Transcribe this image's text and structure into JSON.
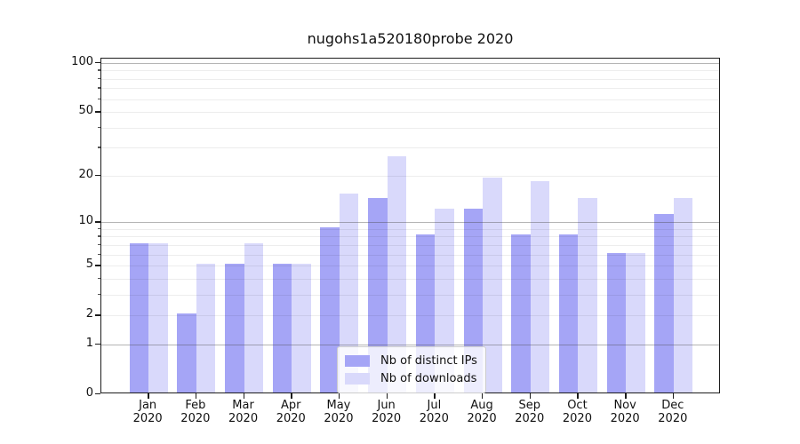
{
  "title": "nugohs1a520180probe 2020",
  "chart_data": {
    "type": "bar",
    "title": "nugohs1a520180probe 2020",
    "categories": [
      "Jan 2020",
      "Feb 2020",
      "Mar 2020",
      "Apr 2020",
      "May 2020",
      "Jun 2020",
      "Jul 2020",
      "Aug 2020",
      "Sep 2020",
      "Oct 2020",
      "Nov 2020",
      "Dec 2020"
    ],
    "series": [
      {
        "name": "Nb of distinct IPs",
        "color": "#a5a5f6",
        "values": [
          7,
          2,
          5,
          5,
          9,
          14,
          8,
          12,
          8,
          8,
          6,
          11
        ]
      },
      {
        "name": "Nb of downloads",
        "color": "#d9d9fb",
        "values": [
          7,
          5,
          7,
          5,
          15,
          26,
          12,
          19,
          18,
          14,
          6,
          14
        ]
      }
    ],
    "xlabel": "",
    "ylabel": "",
    "yscale": "log1p",
    "ylim": [
      0,
      106
    ],
    "ytick_values": [
      0,
      1,
      2,
      5,
      10,
      20,
      50,
      100
    ],
    "ytick_labels": [
      "0",
      "1",
      "2",
      "5",
      "10",
      "20",
      "50",
      "100"
    ],
    "minor_grid_values": [
      2,
      3,
      4,
      5,
      6,
      7,
      8,
      9,
      20,
      30,
      40,
      50,
      60,
      70,
      80,
      90
    ],
    "major_grid_values": [
      1,
      10,
      100
    ],
    "grid": true,
    "legend_position": "lower center"
  },
  "legend": {
    "items": [
      {
        "label": "Nb of distinct IPs",
        "swatch": "#a5a5f6"
      },
      {
        "label": "Nb of downloads",
        "swatch": "#d9d9fb"
      }
    ]
  },
  "colors": {
    "bar_distinct_ips": "#a5a5f6",
    "bar_downloads": "#d9d9fb",
    "major_grid": "rgba(70,70,70,0.40)",
    "minor_grid": "rgba(0,0,0,0.07)",
    "spine": "#1c1c1c",
    "background": "#ffffff",
    "text": "#111111"
  }
}
